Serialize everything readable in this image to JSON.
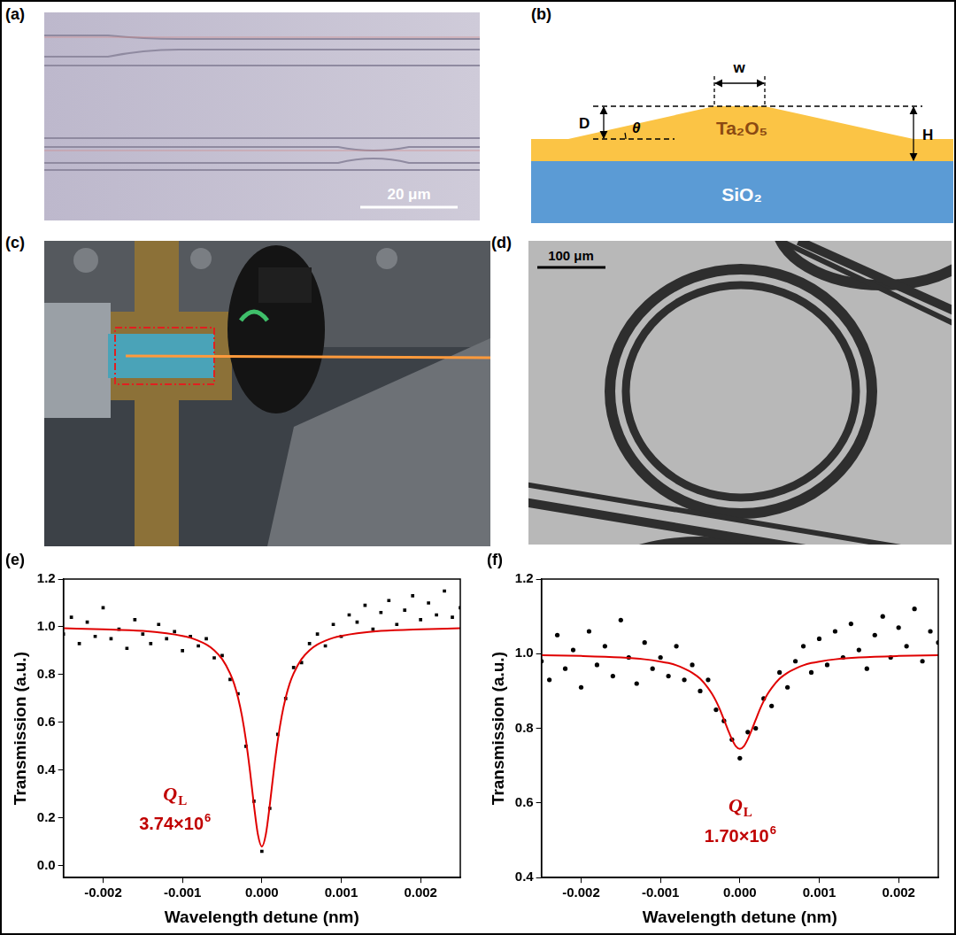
{
  "panels": {
    "a": {
      "label": "(a)",
      "scale_bar": "20 μm"
    },
    "b": {
      "label": "(b)",
      "dimensions": [
        "D",
        "w",
        "θ",
        "H"
      ],
      "layers": [
        "Ta₂O₅",
        "SiO₂"
      ]
    },
    "c": {
      "label": "(c)"
    },
    "d": {
      "label": "(d)",
      "scale_bar": "100 μm"
    }
  },
  "chart_data": [
    {
      "panel_label": "(e)",
      "type": "scatter",
      "x_label": "Wavelength detune (nm)",
      "y_label": "Transmission (a.u.)",
      "annotation": {
        "symbol": "Q",
        "subscript": "L",
        "mantissa": "3.74×10",
        "exponent": "6"
      },
      "xlim": [
        -0.0025,
        0.0025
      ],
      "xticks": [
        -0.002,
        -0.001,
        {
          "value": 0,
          "label": "0.000"
        },
        0.001,
        0.002
      ],
      "ylim": [
        -0.05,
        1.2
      ],
      "yticks": [
        {
          "value": 0,
          "label": "0.0"
        },
        0.2,
        0.4,
        0.6,
        0.8,
        {
          "value": 1,
          "label": "1.0"
        },
        1.2
      ],
      "grid": false,
      "series": [
        {
          "type": "scatter",
          "color": "#000000",
          "marker": "square",
          "x": [
            -0.0025,
            -0.0024,
            -0.0023,
            -0.0022,
            -0.0021,
            -0.002,
            -0.0019,
            -0.0018,
            -0.0017,
            -0.0016,
            -0.0015,
            -0.0014,
            -0.0013,
            -0.0012,
            -0.0011,
            -0.001,
            -0.0009,
            -0.0008,
            -0.0007,
            -0.0006,
            -0.0005,
            -0.0004,
            -0.0003,
            -0.0002,
            -0.0001,
            0,
            0.0001,
            0.0002,
            0.0003,
            0.0004,
            0.0005,
            0.0006,
            0.0007,
            0.0008,
            0.0009,
            0.001,
            0.0011,
            0.0012,
            0.0013,
            0.0014,
            0.0015,
            0.0016,
            0.0017,
            0.0018,
            0.0019,
            0.002,
            0.0021,
            0.0022,
            0.0023,
            0.0024,
            0.0025
          ],
          "values": [
            0.97,
            1.04,
            0.93,
            1.02,
            0.96,
            1.08,
            0.95,
            0.99,
            0.91,
            1.03,
            0.97,
            0.93,
            1.01,
            0.95,
            0.98,
            0.9,
            0.96,
            0.92,
            0.95,
            0.87,
            0.88,
            0.78,
            0.72,
            0.5,
            0.27,
            0.06,
            0.24,
            0.55,
            0.7,
            0.83,
            0.85,
            0.93,
            0.97,
            0.92,
            1.01,
            0.96,
            1.05,
            1.02,
            1.09,
            0.99,
            1.06,
            1.11,
            1.01,
            1.07,
            1.13,
            1.03,
            1.1,
            1.05,
            1.15,
            1.04,
            1.08
          ]
        },
        {
          "type": "line",
          "color": "#e00000",
          "line_style": "solid",
          "x": [
            -0.0025,
            -0.002,
            -0.0015,
            -0.0012,
            -0.001,
            -0.0009,
            -0.0008,
            -0.0007,
            -0.0006,
            -0.0005,
            -0.0004,
            -0.00035,
            -0.0003,
            -0.00025,
            -0.0002,
            -0.00015,
            -0.0001,
            -5e-05,
            0,
            5e-05,
            0.0001,
            0.00015,
            0.0002,
            0.00025,
            0.0003,
            0.00035,
            0.0004,
            0.0005,
            0.0006,
            0.0007,
            0.0008,
            0.0009,
            0.001,
            0.0012,
            0.0015,
            0.002,
            0.0025
          ],
          "values": [
            0.994,
            0.99,
            0.983,
            0.973,
            0.962,
            0.954,
            0.942,
            0.926,
            0.902,
            0.865,
            0.805,
            0.762,
            0.703,
            0.626,
            0.524,
            0.397,
            0.254,
            0.131,
            0.08,
            0.131,
            0.254,
            0.397,
            0.524,
            0.626,
            0.703,
            0.762,
            0.805,
            0.865,
            0.902,
            0.926,
            0.942,
            0.954,
            0.962,
            0.973,
            0.983,
            0.99,
            0.994
          ]
        }
      ]
    },
    {
      "panel_label": "(f)",
      "type": "scatter",
      "x_label": "Wavelength detune (nm)",
      "y_label": "Transmission (a.u.)",
      "annotation": {
        "symbol": "Q",
        "subscript": "L",
        "mantissa": "1.70×10",
        "exponent": "6"
      },
      "xlim": [
        -0.0025,
        0.0025
      ],
      "xticks": [
        -0.002,
        -0.001,
        {
          "value": 0,
          "label": "0.000"
        },
        0.001,
        0.002
      ],
      "ylim": [
        0.4,
        1.2
      ],
      "yticks": [
        0.4,
        0.6,
        0.8,
        {
          "value": 1,
          "label": "1.0"
        },
        1.2
      ],
      "grid": false,
      "series": [
        {
          "type": "scatter",
          "color": "#000000",
          "marker": "circle",
          "x": [
            -0.0025,
            -0.0024,
            -0.0023,
            -0.0022,
            -0.0021,
            -0.002,
            -0.0019,
            -0.0018,
            -0.0017,
            -0.0016,
            -0.0015,
            -0.0014,
            -0.0013,
            -0.0012,
            -0.0011,
            -0.001,
            -0.0009,
            -0.0008,
            -0.0007,
            -0.0006,
            -0.0005,
            -0.0004,
            -0.0003,
            -0.0002,
            -0.0001,
            0,
            0.0001,
            0.0002,
            0.0003,
            0.0004,
            0.0005,
            0.0006,
            0.0007,
            0.0008,
            0.0009,
            0.001,
            0.0011,
            0.0012,
            0.0013,
            0.0014,
            0.0015,
            0.0016,
            0.0017,
            0.0018,
            0.0019,
            0.002,
            0.0021,
            0.0022,
            0.0023,
            0.0024,
            0.0025
          ],
          "values": [
            0.98,
            0.93,
            1.05,
            0.96,
            1.01,
            0.91,
            1.06,
            0.97,
            1.02,
            0.94,
            1.09,
            0.99,
            0.92,
            1.03,
            0.96,
            0.99,
            0.94,
            1.02,
            0.93,
            0.97,
            0.9,
            0.93,
            0.85,
            0.82,
            0.77,
            0.72,
            0.79,
            0.8,
            0.88,
            0.86,
            0.95,
            0.91,
            0.98,
            1.02,
            0.95,
            1.04,
            0.97,
            1.06,
            0.99,
            1.08,
            1.01,
            0.96,
            1.05,
            1.1,
            0.99,
            1.07,
            1.02,
            1.12,
            0.98,
            1.06,
            1.03
          ]
        },
        {
          "type": "line",
          "color": "#e00000",
          "line_style": "solid",
          "x": [
            -0.0025,
            -0.002,
            -0.0015,
            -0.0012,
            -0.001,
            -0.0009,
            -0.0008,
            -0.0007,
            -0.0006,
            -0.0005,
            -0.0004,
            -0.00035,
            -0.0003,
            -0.00025,
            -0.0002,
            -0.00015,
            -0.0001,
            -5e-05,
            0,
            5e-05,
            0.0001,
            0.00015,
            0.0002,
            0.00025,
            0.0003,
            0.00035,
            0.0004,
            0.0005,
            0.0006,
            0.0007,
            0.0008,
            0.0009,
            0.001,
            0.0012,
            0.0015,
            0.002,
            0.0025
          ],
          "values": [
            0.996,
            0.994,
            0.99,
            0.985,
            0.979,
            0.975,
            0.969,
            0.96,
            0.949,
            0.933,
            0.908,
            0.892,
            0.873,
            0.85,
            0.823,
            0.796,
            0.771,
            0.752,
            0.745,
            0.752,
            0.771,
            0.796,
            0.823,
            0.85,
            0.873,
            0.892,
            0.908,
            0.933,
            0.949,
            0.96,
            0.969,
            0.975,
            0.979,
            0.985,
            0.99,
            0.994,
            0.996
          ]
        }
      ]
    }
  ]
}
